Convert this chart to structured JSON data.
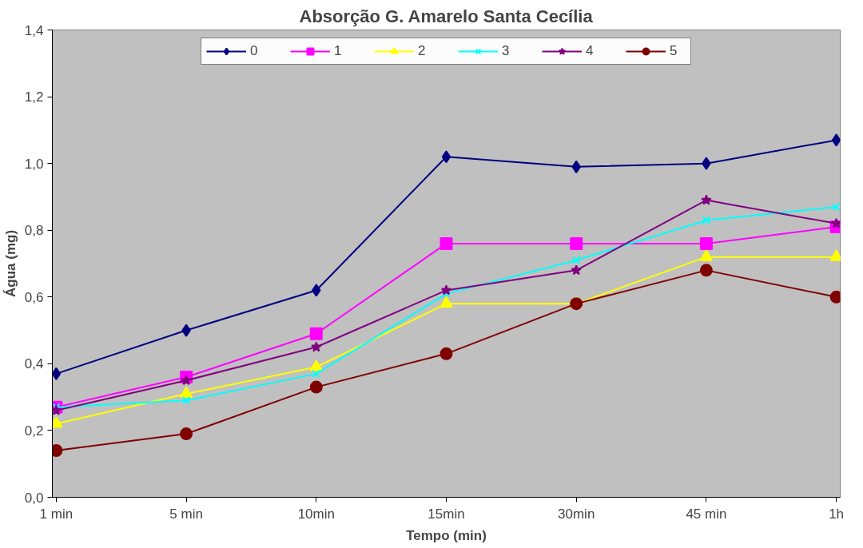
{
  "chart_data": {
    "type": "line",
    "title": "Absorção G. Amarelo Santa Cecília",
    "xlabel": "Tempo (min)",
    "ylabel": "Água (mg)",
    "categories": [
      "1 min",
      "5 min",
      "10min",
      "15min",
      "30min",
      "45 min",
      "1h"
    ],
    "ylim": [
      0,
      1.4
    ],
    "yticks": [
      {
        "value": 0,
        "label": "0,0"
      },
      {
        "value": 0.2,
        "label": "0,2"
      },
      {
        "value": 0.4,
        "label": "0,4"
      },
      {
        "value": 0.6,
        "label": "0,6"
      },
      {
        "value": 0.8,
        "label": "0,8"
      },
      {
        "value": 1.0,
        "label": "1,0"
      },
      {
        "value": 1.2,
        "label": "1,2"
      },
      {
        "value": 1.4,
        "label": "1,4"
      }
    ],
    "grid": false,
    "legend": "top",
    "series": [
      {
        "name": "0",
        "color": "#000080",
        "marker": "diamond",
        "values": [
          0.37,
          0.5,
          0.62,
          1.02,
          0.99,
          1.0,
          1.07
        ]
      },
      {
        "name": "1",
        "color": "#ff00ff",
        "marker": "square",
        "values": [
          0.27,
          0.36,
          0.49,
          0.76,
          0.76,
          0.76,
          0.81
        ]
      },
      {
        "name": "2",
        "color": "#ffff00",
        "marker": "triangle",
        "values": [
          0.22,
          0.31,
          0.39,
          0.58,
          0.58,
          0.72,
          0.72
        ]
      },
      {
        "name": "3",
        "color": "#00ffff",
        "marker": "cross",
        "values": [
          0.27,
          0.29,
          0.37,
          0.61,
          0.71,
          0.83,
          0.87
        ]
      },
      {
        "name": "4",
        "color": "#800080",
        "marker": "star",
        "values": [
          0.26,
          0.35,
          0.45,
          0.62,
          0.68,
          0.89,
          0.82
        ]
      },
      {
        "name": "5",
        "color": "#800000",
        "marker": "circle",
        "values": [
          0.14,
          0.19,
          0.33,
          0.43,
          0.58,
          0.68,
          0.6
        ]
      }
    ]
  }
}
